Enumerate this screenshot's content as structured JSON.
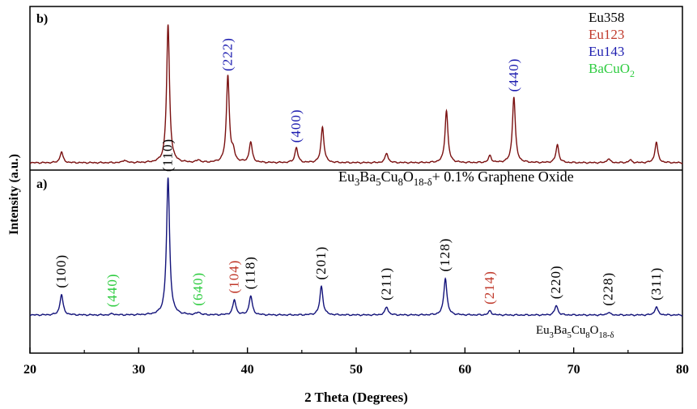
{
  "chart_data": {
    "type": "line",
    "xlabel": "2 Theta (Degrees)",
    "ylabel": "Intensity (a.u.)",
    "xlim": [
      20,
      80
    ],
    "xticks": [
      "20",
      "30",
      "40",
      "50",
      "60",
      "70",
      "80"
    ],
    "panel_labels": {
      "b": "b)",
      "a": "a)"
    },
    "legend": [
      {
        "label": "Eu358",
        "color": "#000000"
      },
      {
        "label": "Eu123",
        "color": "#c0392b"
      },
      {
        "label": "Eu143",
        "color": "#1f1fb0"
      },
      {
        "label": "BaCuO",
        "sub": "2",
        "color": "#2ecc40"
      }
    ],
    "series": [
      {
        "name_parts": [
          "Eu",
          "3",
          "Ba",
          "5",
          "Cu",
          "8",
          "O",
          "18-δ",
          "+ 0.1% Graphene Oxide"
        ],
        "panel": "b",
        "color": "#7a1010",
        "peaks": [
          {
            "x": 22.9,
            "h": 0.08
          },
          {
            "x": 28.7,
            "h": 0.02
          },
          {
            "x": 32.7,
            "h": 1.0
          },
          {
            "x": 35.5,
            "h": 0.02
          },
          {
            "x": 38.2,
            "h": 0.63
          },
          {
            "x": 38.7,
            "h": 0.07
          },
          {
            "x": 40.3,
            "h": 0.15
          },
          {
            "x": 44.5,
            "h": 0.11
          },
          {
            "x": 46.9,
            "h": 0.26
          },
          {
            "x": 52.8,
            "h": 0.07
          },
          {
            "x": 58.3,
            "h": 0.38
          },
          {
            "x": 62.3,
            "h": 0.05
          },
          {
            "x": 64.5,
            "h": 0.48
          },
          {
            "x": 68.5,
            "h": 0.13
          },
          {
            "x": 73.2,
            "h": 0.03
          },
          {
            "x": 75.2,
            "h": 0.02
          },
          {
            "x": 77.6,
            "h": 0.15
          }
        ]
      },
      {
        "name_parts": [
          "Eu",
          "3",
          "Ba",
          "5",
          "Cu",
          "8",
          "O",
          "18-δ"
        ],
        "panel": "a",
        "color": "#13137a",
        "peaks": [
          {
            "x": 22.9,
            "h": 0.15
          },
          {
            "x": 27.6,
            "h": 0.01
          },
          {
            "x": 32.7,
            "h": 1.0
          },
          {
            "x": 35.5,
            "h": 0.02
          },
          {
            "x": 38.8,
            "h": 0.11
          },
          {
            "x": 40.3,
            "h": 0.14
          },
          {
            "x": 46.8,
            "h": 0.21
          },
          {
            "x": 52.8,
            "h": 0.06
          },
          {
            "x": 58.2,
            "h": 0.27
          },
          {
            "x": 62.3,
            "h": 0.03
          },
          {
            "x": 68.4,
            "h": 0.07
          },
          {
            "x": 73.2,
            "h": 0.02
          },
          {
            "x": 77.6,
            "h": 0.06
          }
        ]
      }
    ],
    "annotations_b": [
      {
        "text": "(222)",
        "x": 38.2,
        "color": "#1f1fb0"
      },
      {
        "text": "(400)",
        "x": 44.5,
        "color": "#1f1fb0"
      },
      {
        "text": "(440)",
        "x": 64.5,
        "color": "#1f1fb0"
      }
    ],
    "annotations_a": [
      {
        "text": "(100)",
        "x": 22.9,
        "color": "#000000"
      },
      {
        "text": "(440)",
        "x": 27.6,
        "color": "#2ecc40"
      },
      {
        "text": "(110)",
        "x": 32.7,
        "color": "#000000"
      },
      {
        "text": "(640)",
        "x": 35.5,
        "color": "#2ecc40"
      },
      {
        "text": "(104)",
        "x": 38.8,
        "color": "#c0392b"
      },
      {
        "text": "(118)",
        "x": 40.3,
        "color": "#000000"
      },
      {
        "text": "(201)",
        "x": 46.8,
        "color": "#000000"
      },
      {
        "text": "(211)",
        "x": 52.8,
        "color": "#000000"
      },
      {
        "text": "(128)",
        "x": 58.2,
        "color": "#000000"
      },
      {
        "text": "(214)",
        "x": 62.3,
        "color": "#c0392b"
      },
      {
        "text": "(220)",
        "x": 68.4,
        "color": "#000000"
      },
      {
        "text": "(228)",
        "x": 73.2,
        "color": "#000000"
      },
      {
        "text": "(311)",
        "x": 77.6,
        "color": "#000000"
      }
    ]
  }
}
